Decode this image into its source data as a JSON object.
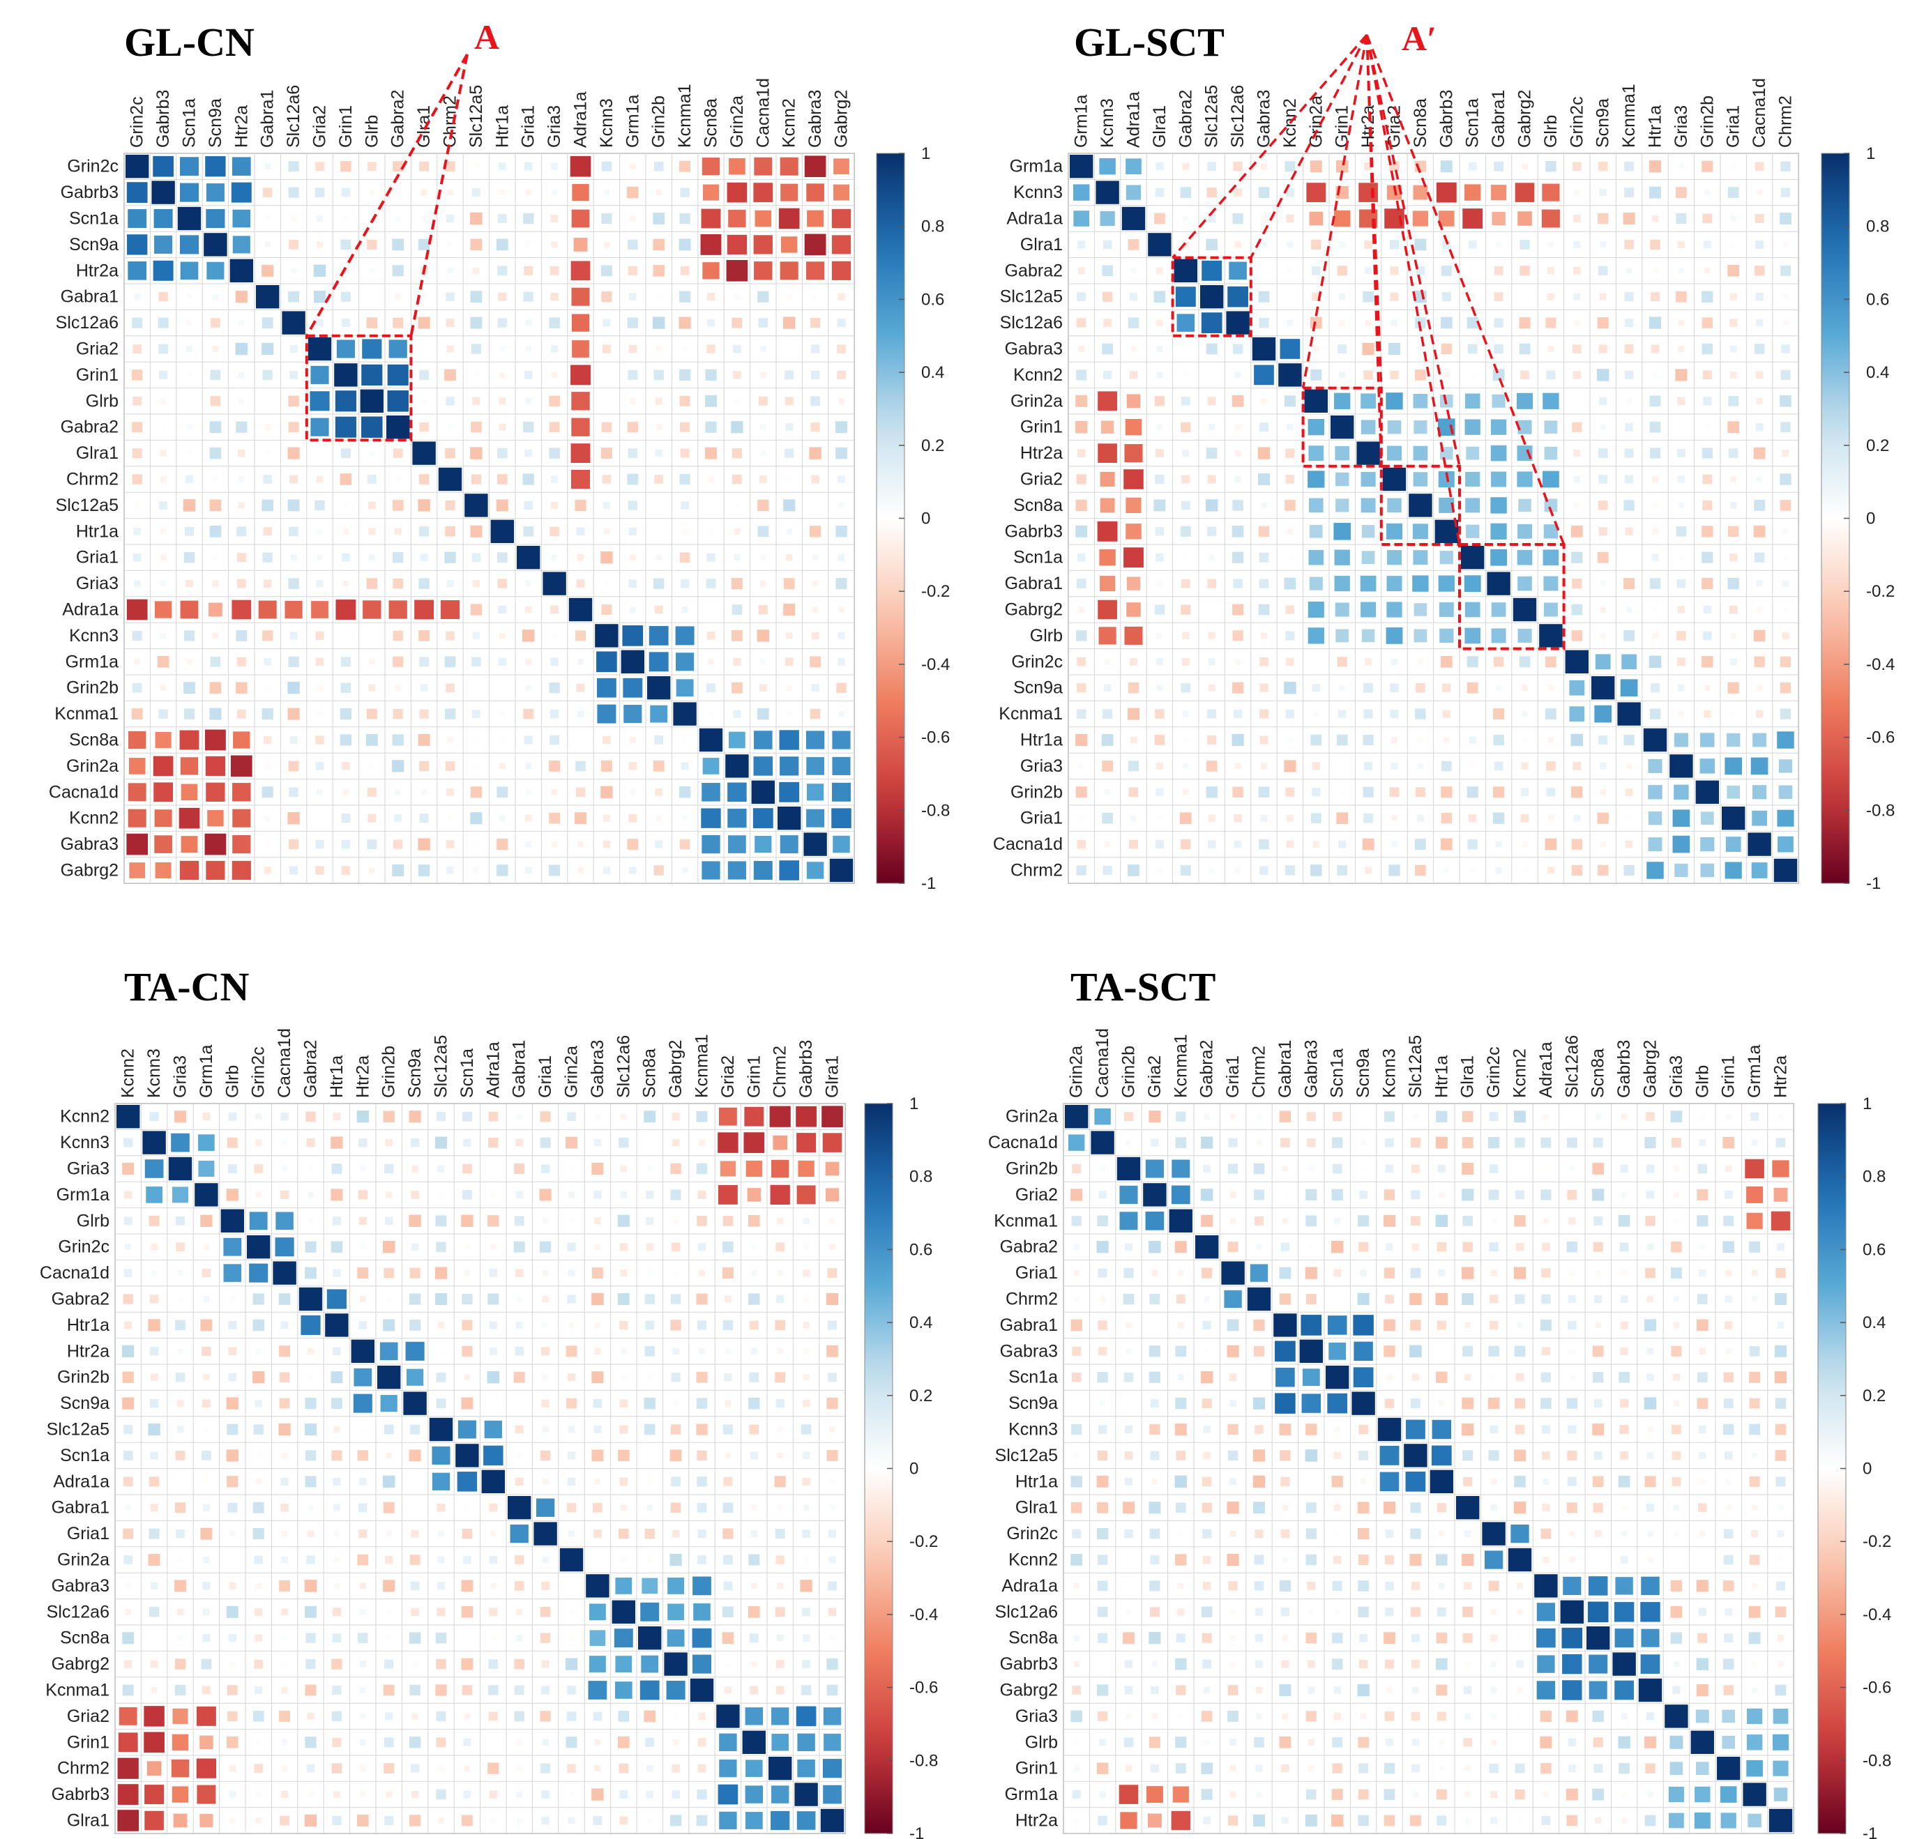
{
  "chart_data": [
    {
      "type": "heatmap",
      "title": "GL-CN",
      "labels": [
        "Grin2c",
        "Gabrb3",
        "Scn1a",
        "Scn9a",
        "Htr2a",
        "Gabra1",
        "Slc12a6",
        "Gria2",
        "Grin1",
        "Glrb",
        "Gabra2",
        "Glra1",
        "Chrm2",
        "Slc12a5",
        "Htr1a",
        "Gria1",
        "Gria3",
        "Adra1a",
        "Kcnn3",
        "Grm1a",
        "Grin2b",
        "Kcnma1",
        "Scn8a",
        "Grin2a",
        "Cacna1d",
        "Kcnn2",
        "Gabra3",
        "Gabrg2"
      ],
      "blocks": [
        [
          0,
          4,
          0.8
        ],
        [
          7,
          10,
          0.85
        ],
        [
          18,
          21,
          0.8
        ],
        [
          22,
          27,
          0.75
        ]
      ],
      "highlights": [
        {
          "label": "A",
          "start": 7,
          "end": 10
        }
      ],
      "colorbar": {
        "range": [
          -1,
          1
        ],
        "ticks": [
          "1",
          "0.8",
          "0.6",
          "0.4",
          "0.2",
          "0",
          "-0.2",
          "-0.4",
          "-0.6",
          "-0.8",
          "-1"
        ]
      }
    },
    {
      "type": "heatmap",
      "title": "GL-SCT",
      "labels": [
        "Grm1a",
        "Kcnn3",
        "Adra1a",
        "Glra1",
        "Gabra2",
        "Slc12a5",
        "Slc12a6",
        "Gabra3",
        "Kcnn2",
        "Grin2a",
        "Grin1",
        "Htr2a",
        "Gria2",
        "Scn8a",
        "Gabrb3",
        "Scn1a",
        "Gabra1",
        "Gabrg2",
        "Glrb",
        "Grin2c",
        "Scn9a",
        "Kcnma1",
        "Htr1a",
        "Gria3",
        "Grin2b",
        "Gria1",
        "Cacna1d",
        "Chrm2"
      ],
      "blocks": [
        [
          0,
          2,
          0.6
        ],
        [
          4,
          6,
          0.8
        ],
        [
          7,
          8,
          0.75
        ],
        [
          9,
          11,
          0.85
        ],
        [
          12,
          14,
          0.8
        ],
        [
          15,
          18,
          0.8
        ],
        [
          9,
          18,
          0.55
        ],
        [
          19,
          21,
          0.6
        ],
        [
          22,
          27,
          0.55
        ]
      ],
      "highlights": [
        {
          "label": "A′",
          "start": 4,
          "end": 6
        },
        {
          "label": "A′",
          "start": 9,
          "end": 11
        },
        {
          "label": "A′",
          "start": 12,
          "end": 14
        },
        {
          "label": "A′",
          "start": 15,
          "end": 18
        }
      ],
      "colorbar": {
        "range": [
          -1,
          1
        ],
        "ticks": [
          "1",
          "0.8",
          "0.6",
          "0.4",
          "0.2",
          "0",
          "-0.2",
          "-0.4",
          "-0.6",
          "-0.8",
          "-1"
        ]
      }
    },
    {
      "type": "heatmap",
      "title": "TA-CN",
      "labels": [
        "Kcnn2",
        "Kcnn3",
        "Gria3",
        "Grm1a",
        "Glrb",
        "Grin2c",
        "Cacna1d",
        "Gabra2",
        "Htr1a",
        "Htr2a",
        "Grin2b",
        "Scn9a",
        "Slc12a5",
        "Scn1a",
        "Adra1a",
        "Gabra1",
        "Gria1",
        "Grin2a",
        "Gabra3",
        "Slc12a6",
        "Scn8a",
        "Gabrg2",
        "Kcnma1",
        "Gria2",
        "Grin1",
        "Chrm2",
        "Gabrb3",
        "Glra1"
      ],
      "blocks": [
        [
          1,
          3,
          0.7
        ],
        [
          4,
          6,
          0.7
        ],
        [
          7,
          8,
          0.8
        ],
        [
          9,
          11,
          0.75
        ],
        [
          12,
          14,
          0.75
        ],
        [
          15,
          16,
          0.75
        ],
        [
          18,
          22,
          0.7
        ],
        [
          23,
          27,
          0.75
        ]
      ],
      "highlights": [],
      "colorbar": {
        "range": [
          -1,
          1
        ],
        "ticks": [
          "1",
          "0.8",
          "0.6",
          "0.4",
          "0.2",
          "0",
          "-0.2",
          "-0.4",
          "-0.6",
          "-0.8",
          "-1"
        ]
      }
    },
    {
      "type": "heatmap",
      "title": "TA-SCT",
      "labels": [
        "Grin2a",
        "Cacna1d",
        "Grin2b",
        "Gria2",
        "Kcnma1",
        "Gabra2",
        "Gria1",
        "Chrm2",
        "Gabra1",
        "Gabra3",
        "Scn1a",
        "Scn9a",
        "Kcnn3",
        "Slc12a5",
        "Htr1a",
        "Glra1",
        "Grin2c",
        "Kcnn2",
        "Adra1a",
        "Slc12a6",
        "Scn8a",
        "Gabrb3",
        "Gabrg2",
        "Gria3",
        "Glrb",
        "Grin1",
        "Grm1a",
        "Htr2a"
      ],
      "blocks": [
        [
          0,
          1,
          0.6
        ],
        [
          2,
          4,
          0.75
        ],
        [
          6,
          7,
          0.7
        ],
        [
          8,
          11,
          0.8
        ],
        [
          12,
          14,
          0.75
        ],
        [
          16,
          17,
          0.75
        ],
        [
          18,
          22,
          0.8
        ],
        [
          23,
          27,
          0.55
        ]
      ],
      "highlights": [],
      "colorbar": {
        "range": [
          -1,
          1
        ],
        "ticks": [
          "1",
          "0.8",
          "0.6",
          "0.4",
          "0.2",
          "0",
          "-0.2",
          "-0.4",
          "-0.6",
          "-0.8",
          "-1"
        ]
      }
    }
  ]
}
